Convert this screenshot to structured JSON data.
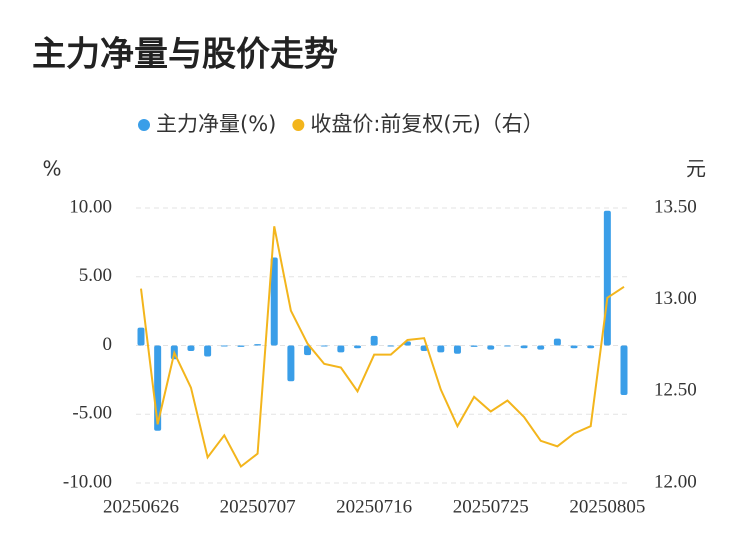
{
  "chart_data": {
    "type": "bar-line",
    "title": "主力净量与股价走势",
    "y_unit": "%",
    "y2_unit": "元",
    "categories": [
      "20250626",
      null,
      null,
      null,
      null,
      null,
      null,
      "20250707",
      null,
      null,
      null,
      null,
      null,
      null,
      "20250716",
      null,
      null,
      null,
      null,
      null,
      null,
      "20250725",
      null,
      null,
      null,
      null,
      null,
      null,
      "20250805",
      null
    ],
    "series": [
      {
        "name": "主力净量(%)",
        "type": "bar",
        "color": "#3a9ee8",
        "values": [
          1.3,
          -6.2,
          -1.0,
          -0.4,
          -0.8,
          -0.05,
          -0.1,
          0.1,
          6.4,
          -2.6,
          -0.7,
          -0.05,
          -0.5,
          -0.2,
          0.7,
          -0.05,
          0.3,
          -0.4,
          -0.5,
          -0.6,
          -0.1,
          -0.3,
          -0.05,
          -0.2,
          -0.3,
          0.5,
          -0.2,
          -0.2,
          9.8,
          -3.6
        ]
      },
      {
        "name": "收盘价:前复权(元)（右）",
        "type": "line",
        "axis": "y2",
        "color": "#f3b51c",
        "values": [
          13.06,
          12.32,
          12.71,
          12.52,
          12.14,
          12.26,
          12.09,
          12.16,
          13.4,
          12.94,
          12.76,
          12.65,
          12.63,
          12.5,
          12.7,
          12.7,
          12.78,
          12.79,
          12.51,
          12.31,
          12.47,
          12.39,
          12.45,
          12.36,
          12.23,
          12.2,
          12.27,
          12.31,
          13.01,
          13.07
        ]
      }
    ],
    "ylim": [
      -10,
      10
    ],
    "yticks": [
      {
        "value": 10,
        "label": "10.00"
      },
      {
        "value": 5,
        "label": "5.00"
      },
      0,
      {
        "value": -5,
        "label": "-5.00"
      },
      {
        "value": -10,
        "label": "-10.00"
      }
    ],
    "y2lim": [
      12,
      13.5
    ],
    "y2ticks": [
      {
        "value": 13.5,
        "label": "13.50"
      },
      {
        "value": 13,
        "label": "13.00"
      },
      {
        "value": 12.5,
        "label": "12.50"
      },
      {
        "value": 12,
        "label": "12.00"
      }
    ],
    "grid": true
  }
}
